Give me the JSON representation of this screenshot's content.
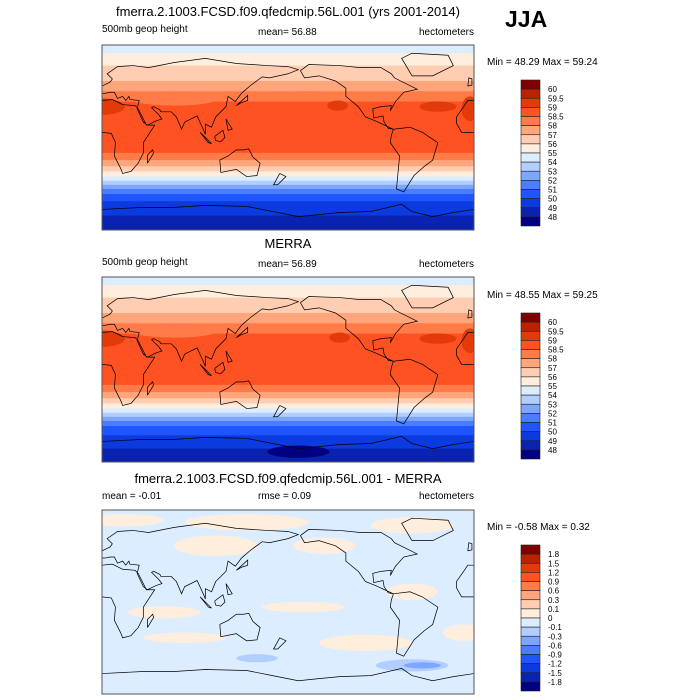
{
  "season_label": "JJA",
  "palette": [
    "#000080",
    "#0a22b0",
    "#0b3ade",
    "#1e55ff",
    "#4a7dff",
    "#7ea6ff",
    "#b2ceff",
    "#dcedff",
    "#ffeedd",
    "#ffcdb2",
    "#ffa57c",
    "#ff7b48",
    "#ff5222",
    "#e23a08",
    "#bb2200",
    "#800000"
  ],
  "chart_data": [
    {
      "type": "heatmap",
      "title": "fmerra.2.1003.FCSD.f09.qfedcmip.56L.001 (yrs 2001-2014)",
      "variable": "500mb geop height",
      "mean_text": "mean=  56.88",
      "units": "hectometers",
      "minmax_text": "Min =  48.29 Max =  59.24",
      "min": 48.29,
      "max": 59.24,
      "mean": 56.88,
      "levels": [
        "48",
        "49",
        "50",
        "51",
        "52",
        "53",
        "54",
        "55",
        "56",
        "57",
        "58",
        "58.5",
        "59",
        "59.5",
        "60"
      ],
      "xlim_lon": [
        0,
        360
      ],
      "ylim_lat": [
        -90,
        90
      ],
      "zonal_bands": [
        [
          90,
          82,
          7
        ],
        [
          82,
          70,
          8
        ],
        [
          70,
          55,
          9
        ],
        [
          55,
          45,
          10
        ],
        [
          45,
          35,
          11
        ],
        [
          35,
          -15,
          12
        ],
        [
          -15,
          -22,
          11
        ],
        [
          -22,
          -28,
          10
        ],
        [
          -28,
          -33,
          9
        ],
        [
          -33,
          -38,
          8
        ],
        [
          -38,
          -42,
          7
        ],
        [
          -42,
          -46,
          6
        ],
        [
          -46,
          -50,
          5
        ],
        [
          -50,
          -55,
          4
        ],
        [
          -55,
          -62,
          3
        ],
        [
          -62,
          -76,
          2
        ],
        [
          -76,
          -90,
          1
        ]
      ],
      "patches": [
        [
          0,
          30,
          22,
          8,
          13
        ],
        [
          228,
          31,
          10,
          5,
          13
        ],
        [
          325,
          30,
          18,
          5,
          13
        ],
        [
          356,
          28,
          8,
          12,
          13
        ],
        [
          70,
          37,
          40,
          6,
          11
        ],
        [
          200,
          40,
          30,
          5,
          11
        ]
      ]
    },
    {
      "type": "heatmap",
      "title": "MERRA",
      "variable": "500mb geop height",
      "mean_text": "mean=  56.89",
      "units": "hectometers",
      "minmax_text": "Min =  48.55 Max =  59.25",
      "min": 48.55,
      "max": 59.25,
      "mean": 56.89,
      "levels": [
        "48",
        "49",
        "50",
        "51",
        "52",
        "53",
        "54",
        "55",
        "56",
        "57",
        "58",
        "58.5",
        "59",
        "59.5",
        "60"
      ],
      "xlim_lon": [
        0,
        360
      ],
      "ylim_lat": [
        -90,
        90
      ],
      "zonal_bands": [
        [
          90,
          82,
          7
        ],
        [
          82,
          70,
          8
        ],
        [
          70,
          55,
          9
        ],
        [
          55,
          45,
          10
        ],
        [
          45,
          35,
          11
        ],
        [
          35,
          -15,
          12
        ],
        [
          -15,
          -22,
          11
        ],
        [
          -22,
          -28,
          10
        ],
        [
          -28,
          -33,
          9
        ],
        [
          -33,
          -38,
          8
        ],
        [
          -38,
          -42,
          7
        ],
        [
          -42,
          -46,
          6
        ],
        [
          -46,
          -50,
          5
        ],
        [
          -50,
          -55,
          4
        ],
        [
          -55,
          -64,
          3
        ],
        [
          -64,
          -77,
          2
        ],
        [
          -77,
          -90,
          1
        ]
      ],
      "patches": [
        [
          0,
          30,
          22,
          8,
          13
        ],
        [
          230,
          31,
          10,
          5,
          13
        ],
        [
          325,
          30,
          18,
          5,
          13
        ],
        [
          356,
          28,
          8,
          12,
          13
        ],
        [
          70,
          37,
          40,
          6,
          11
        ],
        [
          190,
          -80,
          30,
          6,
          0
        ]
      ]
    },
    {
      "type": "heatmap",
      "title": "fmerra.2.1003.FCSD.f09.qfedcmip.56L.001 - MERRA",
      "variable": "mean =  -0.01",
      "mean_text": "rmse =   0.09",
      "units": "hectometers",
      "minmax_text": "Min =  -0.58 Max =   0.32",
      "min": -0.58,
      "max": 0.32,
      "mean": -0.01,
      "rmse": 0.09,
      "levels": [
        "-1.8",
        "-1.5",
        "-1.2",
        "-0.9",
        "-0.6",
        "-0.3",
        "-0.1",
        "0",
        "0.1",
        "0.3",
        "0.6",
        "0.9",
        "1.2",
        "1.5",
        "1.8"
      ],
      "xlim_lon": [
        0,
        360
      ],
      "ylim_lat": [
        -90,
        90
      ],
      "zonal_bands": [
        [
          90,
          -90,
          7
        ]
      ],
      "patches": [
        [
          20,
          80,
          40,
          6,
          8
        ],
        [
          140,
          78,
          60,
          8,
          8
        ],
        [
          300,
          75,
          40,
          8,
          8
        ],
        [
          110,
          55,
          40,
          10,
          8
        ],
        [
          215,
          55,
          30,
          8,
          8
        ],
        [
          60,
          -10,
          35,
          6,
          8
        ],
        [
          195,
          -5,
          40,
          5,
          8
        ],
        [
          300,
          10,
          25,
          8,
          8
        ],
        [
          255,
          -40,
          45,
          8,
          8
        ],
        [
          80,
          -35,
          40,
          5,
          8
        ],
        [
          350,
          -30,
          20,
          8,
          8
        ],
        [
          300,
          -62,
          35,
          6,
          6
        ],
        [
          310,
          -62,
          18,
          3,
          5
        ],
        [
          150,
          -55,
          20,
          4,
          6
        ]
      ]
    }
  ]
}
